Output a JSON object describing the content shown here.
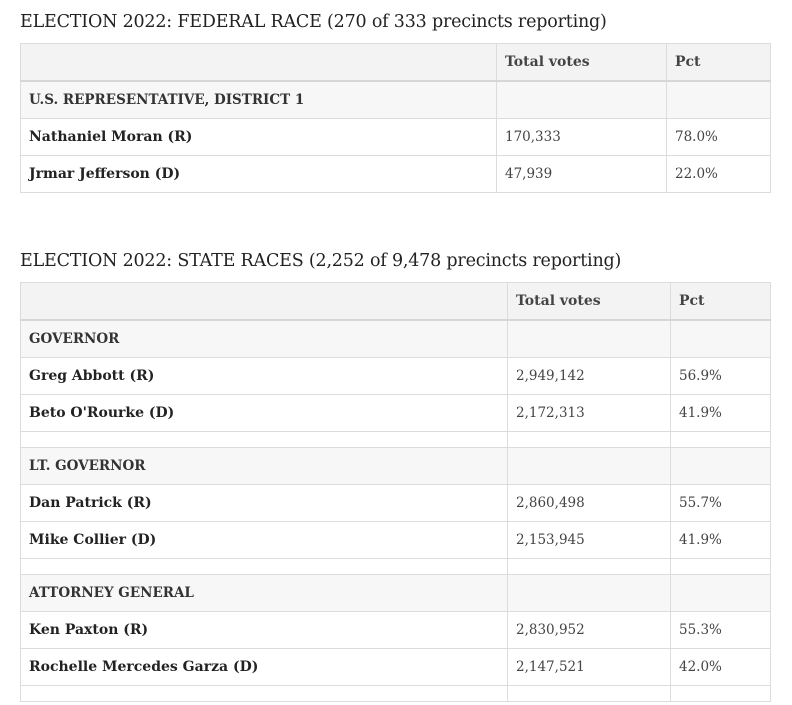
{
  "federal": {
    "caption": "ELECTION 2022: FEDERAL RACE (270 of 333 precincts reporting)",
    "columns": {
      "name": "",
      "votes": "Total votes",
      "pct": "Pct"
    },
    "races": [
      {
        "title": "U.S. REPRESENTATIVE, DISTRICT 1",
        "candidates": [
          {
            "name": "Nathaniel Moran (R)",
            "votes": "170,333",
            "pct": "78.0%"
          },
          {
            "name": "Jrmar Jefferson (D)",
            "votes": "47,939",
            "pct": "22.0%"
          }
        ]
      }
    ]
  },
  "state": {
    "caption": "ELECTION 2022: STATE RACES (2,252 of 9,478 precincts reporting)",
    "columns": {
      "name": "",
      "votes": "Total votes",
      "pct": "Pct"
    },
    "races": [
      {
        "title": "GOVERNOR",
        "candidates": [
          {
            "name": "Greg Abbott (R)",
            "votes": "2,949,142",
            "pct": "56.9%"
          },
          {
            "name": "Beto O'Rourke (D)",
            "votes": "2,172,313",
            "pct": "41.9%"
          }
        ]
      },
      {
        "title": "LT. GOVERNOR",
        "candidates": [
          {
            "name": "Dan Patrick (R)",
            "votes": "2,860,498",
            "pct": "55.7%"
          },
          {
            "name": "Mike Collier (D)",
            "votes": "2,153,945",
            "pct": "41.9%"
          }
        ]
      },
      {
        "title": "ATTORNEY GENERAL",
        "candidates": [
          {
            "name": "Ken Paxton (R)",
            "votes": "2,830,952",
            "pct": "55.3%"
          },
          {
            "name": "Rochelle Mercedes Garza (D)",
            "votes": "2,147,521",
            "pct": "42.0%"
          }
        ]
      }
    ]
  }
}
